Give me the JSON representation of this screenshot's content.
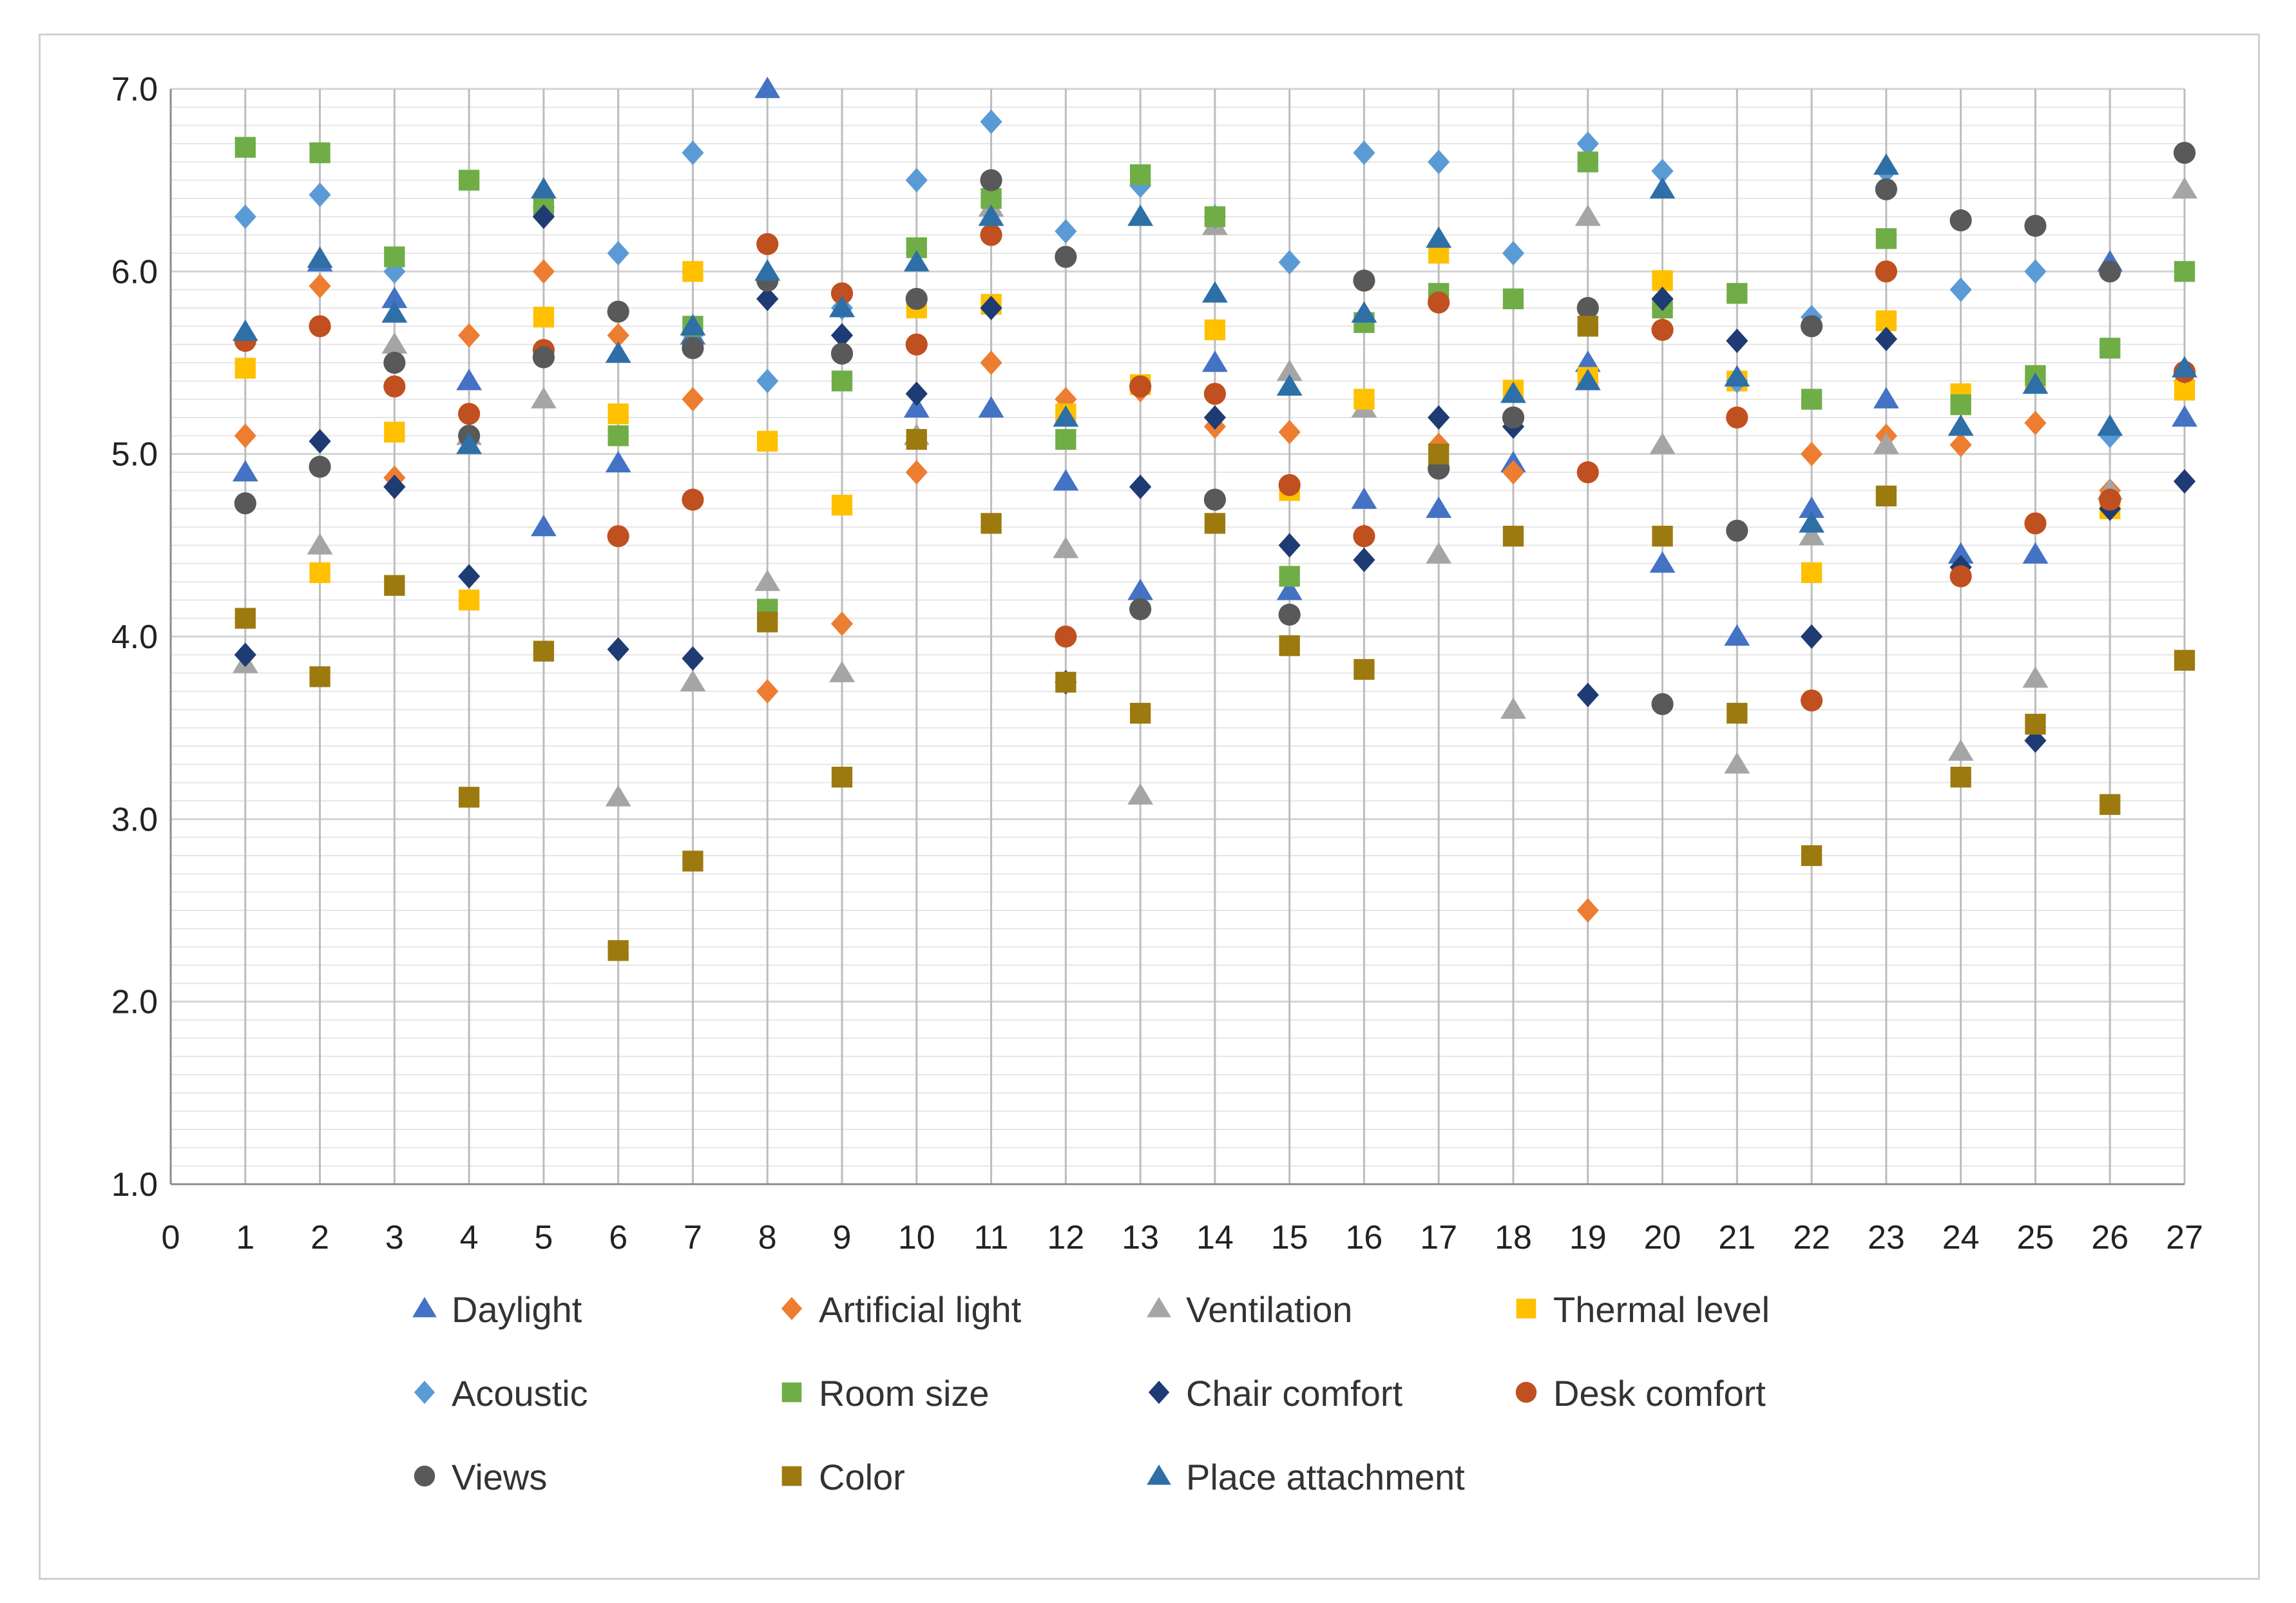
{
  "chart_data": {
    "type": "scatter",
    "title": "",
    "xlabel": "",
    "ylabel": "",
    "xlim": [
      0,
      27
    ],
    "ylim": [
      1.0,
      7.0
    ],
    "x_ticks": [
      "0",
      "1",
      "2",
      "3",
      "4",
      "5",
      "6",
      "7",
      "8",
      "9",
      "10",
      "11",
      "12",
      "13",
      "14",
      "15",
      "16",
      "17",
      "18",
      "19",
      "20",
      "21",
      "22",
      "23",
      "24",
      "25",
      "26",
      "27"
    ],
    "y_ticks": [
      "1.0",
      "2.0",
      "3.0",
      "4.0",
      "5.0",
      "6.0",
      "7.0"
    ],
    "vertical_gridlines": true,
    "horizontal_gridlines": "minor 0.1",
    "legend_position": "bottom",
    "x": [
      1,
      2,
      3,
      4,
      5,
      6,
      7,
      8,
      9,
      10,
      11,
      12,
      13,
      14,
      15,
      16,
      17,
      18,
      19,
      20,
      21,
      22,
      23,
      24,
      25,
      26,
      27
    ],
    "series": [
      {
        "name": "Daylight",
        "marker": "triangle",
        "color": "#4472C4",
        "values": [
          4.9,
          6.05,
          5.85,
          5.4,
          4.6,
          4.95,
          5.65,
          7.0,
          5.8,
          5.25,
          5.25,
          4.85,
          4.25,
          5.5,
          4.25,
          4.75,
          4.7,
          4.95,
          5.5,
          4.4,
          4.0,
          4.7,
          5.3,
          4.45,
          4.45,
          6.05,
          5.2
        ]
      },
      {
        "name": "Artificial light",
        "marker": "diamond",
        "color": "#ED7D31",
        "values": [
          5.1,
          5.92,
          4.87,
          5.65,
          6.0,
          5.65,
          5.3,
          3.7,
          4.07,
          4.9,
          5.5,
          5.3,
          5.35,
          5.15,
          5.12,
          4.55,
          5.05,
          4.9,
          2.5,
          5.8,
          5.4,
          5.0,
          5.1,
          5.05,
          5.17,
          4.8,
          5.4
        ]
      },
      {
        "name": "Ventilation",
        "marker": "triangle",
        "color": "#A5A5A5",
        "values": [
          3.85,
          4.5,
          5.6,
          5.1,
          5.3,
          3.12,
          3.75,
          4.3,
          3.8,
          5.1,
          6.35,
          4.48,
          3.13,
          6.25,
          5.45,
          5.25,
          4.45,
          3.6,
          6.3,
          5.05,
          3.3,
          4.55,
          5.05,
          3.37,
          3.77,
          4.8,
          6.45
        ]
      },
      {
        "name": "Thermal level",
        "marker": "square",
        "color": "#FFC000",
        "values": [
          5.47,
          4.35,
          5.12,
          4.2,
          5.75,
          5.22,
          6.0,
          5.07,
          4.72,
          5.8,
          5.82,
          5.22,
          5.38,
          5.68,
          4.8,
          5.3,
          6.1,
          5.35,
          5.42,
          5.95,
          5.4,
          4.35,
          5.73,
          5.33,
          5.4,
          4.7,
          5.35
        ]
      },
      {
        "name": "Acoustic",
        "marker": "diamond",
        "color": "#5B9BD5",
        "values": [
          6.3,
          6.42,
          6.0,
          5.1,
          6.35,
          6.1,
          6.65,
          5.4,
          5.8,
          6.5,
          6.82,
          6.22,
          6.47,
          6.3,
          6.05,
          6.65,
          6.6,
          6.1,
          6.7,
          6.55,
          5.4,
          5.75,
          6.55,
          5.9,
          6.0,
          5.1,
          5.45
        ]
      },
      {
        "name": "Room size",
        "marker": "square",
        "color": "#70AD47",
        "values": [
          6.68,
          6.65,
          6.08,
          6.5,
          6.35,
          5.1,
          5.7,
          4.15,
          5.4,
          6.13,
          6.4,
          5.08,
          6.53,
          6.3,
          4.33,
          5.72,
          5.88,
          5.85,
          6.6,
          5.8,
          5.88,
          5.3,
          6.18,
          5.27,
          5.43,
          5.58,
          6.0
        ]
      },
      {
        "name": "Chair comfort",
        "marker": "diamond",
        "color": "#1F3B73",
        "values": [
          3.9,
          5.07,
          4.82,
          4.33,
          6.3,
          3.93,
          3.88,
          5.85,
          5.65,
          5.33,
          5.8,
          3.75,
          4.82,
          5.2,
          4.5,
          4.42,
          5.2,
          5.15,
          3.68,
          5.85,
          5.62,
          4.0,
          5.63,
          4.38,
          3.43,
          4.7,
          4.85
        ]
      },
      {
        "name": "Desk comfort",
        "marker": "circle",
        "color": "#C0501F",
        "values": [
          5.62,
          5.7,
          5.37,
          5.22,
          5.57,
          4.55,
          4.75,
          6.15,
          5.88,
          5.6,
          6.2,
          4.0,
          5.37,
          5.33,
          4.83,
          4.55,
          5.83,
          5.2,
          4.9,
          5.68,
          5.2,
          3.65,
          6.0,
          4.33,
          4.62,
          4.75,
          5.45
        ]
      },
      {
        "name": "Views",
        "marker": "circle",
        "color": "#595959",
        "values": [
          4.73,
          4.93,
          5.5,
          5.1,
          5.53,
          5.78,
          5.58,
          5.95,
          5.55,
          5.85,
          6.5,
          6.08,
          4.15,
          4.75,
          4.12,
          5.95,
          4.92,
          5.2,
          5.8,
          3.63,
          4.58,
          5.7,
          6.45,
          6.28,
          6.25,
          6.0,
          6.65
        ]
      },
      {
        "name": "Color",
        "marker": "square",
        "color": "#9C7A10",
        "values": [
          4.1,
          3.78,
          4.28,
          3.12,
          3.92,
          2.28,
          2.77,
          4.08,
          3.23,
          5.08,
          4.62,
          3.75,
          3.58,
          4.62,
          3.95,
          3.82,
          5.0,
          4.55,
          5.7,
          4.55,
          3.58,
          2.8,
          4.77,
          3.23,
          3.52,
          3.08,
          3.87
        ]
      },
      {
        "name": "Place attachment",
        "marker": "triangle",
        "color": "#2E6FA8",
        "values": [
          5.67,
          6.07,
          5.77,
          5.05,
          6.45,
          5.55,
          5.7,
          6.0,
          5.8,
          6.05,
          6.3,
          5.2,
          6.3,
          5.88,
          5.37,
          5.77,
          6.18,
          5.33,
          5.4,
          6.45,
          5.42,
          4.62,
          6.58,
          5.15,
          5.38,
          5.15,
          5.47
        ]
      }
    ]
  }
}
